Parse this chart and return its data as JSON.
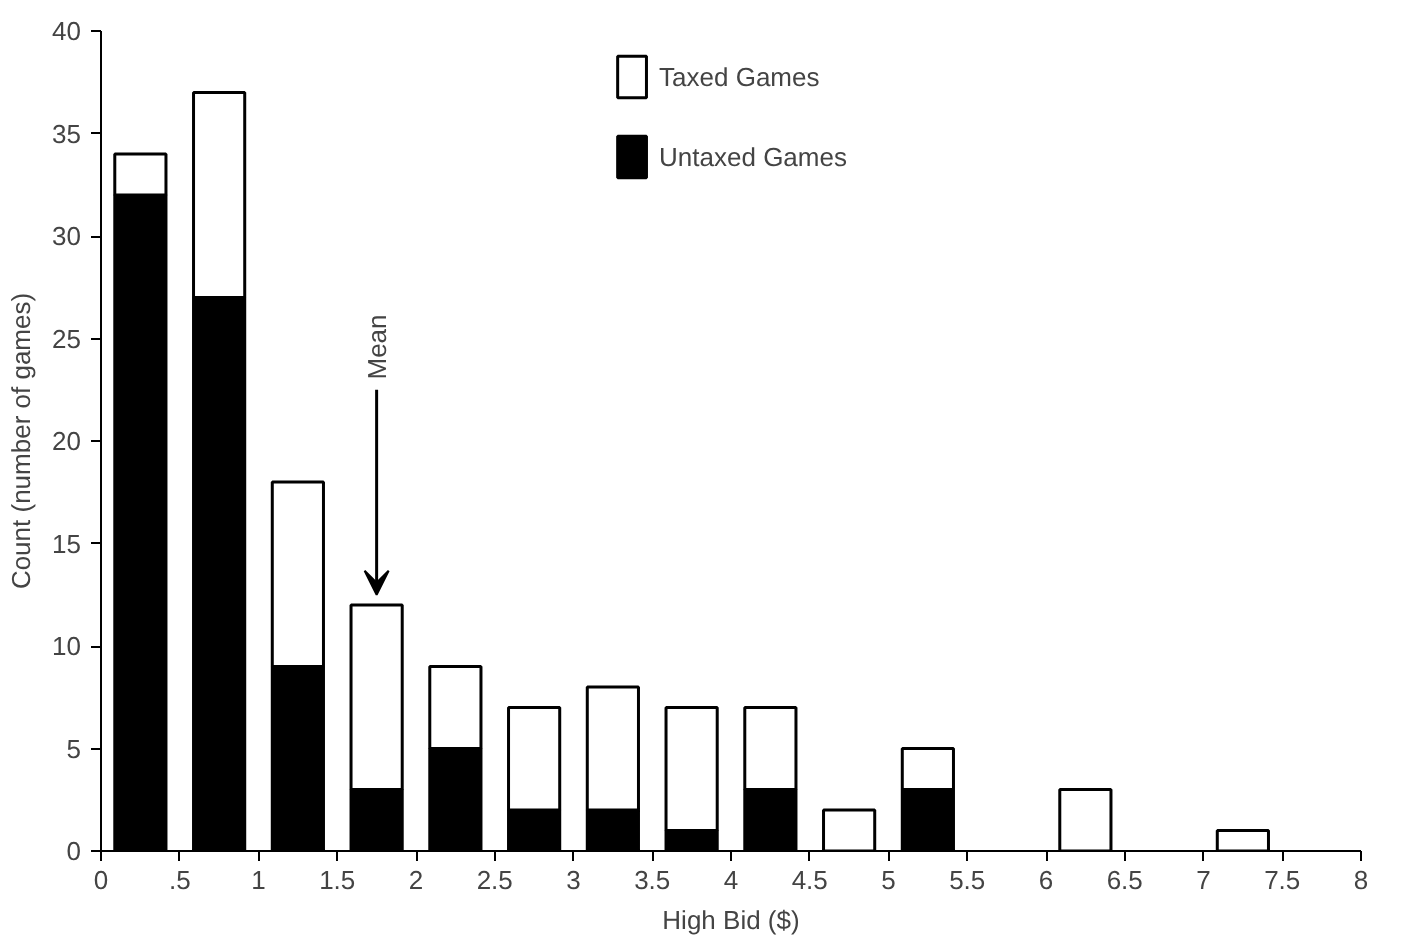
{
  "chart_data": {
    "type": "bar",
    "xlabel": "High Bid ($)",
    "ylabel": "Count (number of games)",
    "x": [
      0.25,
      0.75,
      1.25,
      1.75,
      2.25,
      2.75,
      3.25,
      3.75,
      4.25,
      4.75,
      5.25,
      5.75,
      6.25,
      6.75,
      7.25,
      7.75
    ],
    "stacked": true,
    "series": [
      {
        "name": "Untaxed Games",
        "color": "#000000",
        "values": [
          32,
          27,
          9,
          3,
          5,
          2,
          2,
          1,
          3,
          0,
          3,
          0,
          0,
          0,
          0,
          0
        ]
      },
      {
        "name": "Taxed Games",
        "color": "#ffffff",
        "values": [
          2,
          10,
          9,
          9,
          4,
          5,
          6,
          6,
          4,
          2,
          2,
          0,
          3,
          0,
          1,
          0
        ]
      }
    ],
    "annotations": [
      {
        "text": "Mean",
        "x": 1.75,
        "y": 12
      }
    ],
    "xlim": [
      0,
      8
    ],
    "ylim": [
      0,
      40
    ],
    "xticks": [
      0,
      {
        "value": 0.5,
        "label": ".5"
      },
      1,
      1.5,
      2,
      2.5,
      3,
      3.5,
      4,
      4.5,
      5,
      5.5,
      6,
      6.5,
      7,
      7.5,
      8
    ],
    "yticks": [
      0,
      5,
      10,
      15,
      20,
      25,
      30,
      35,
      40
    ],
    "grid": false,
    "legend": "top"
  }
}
